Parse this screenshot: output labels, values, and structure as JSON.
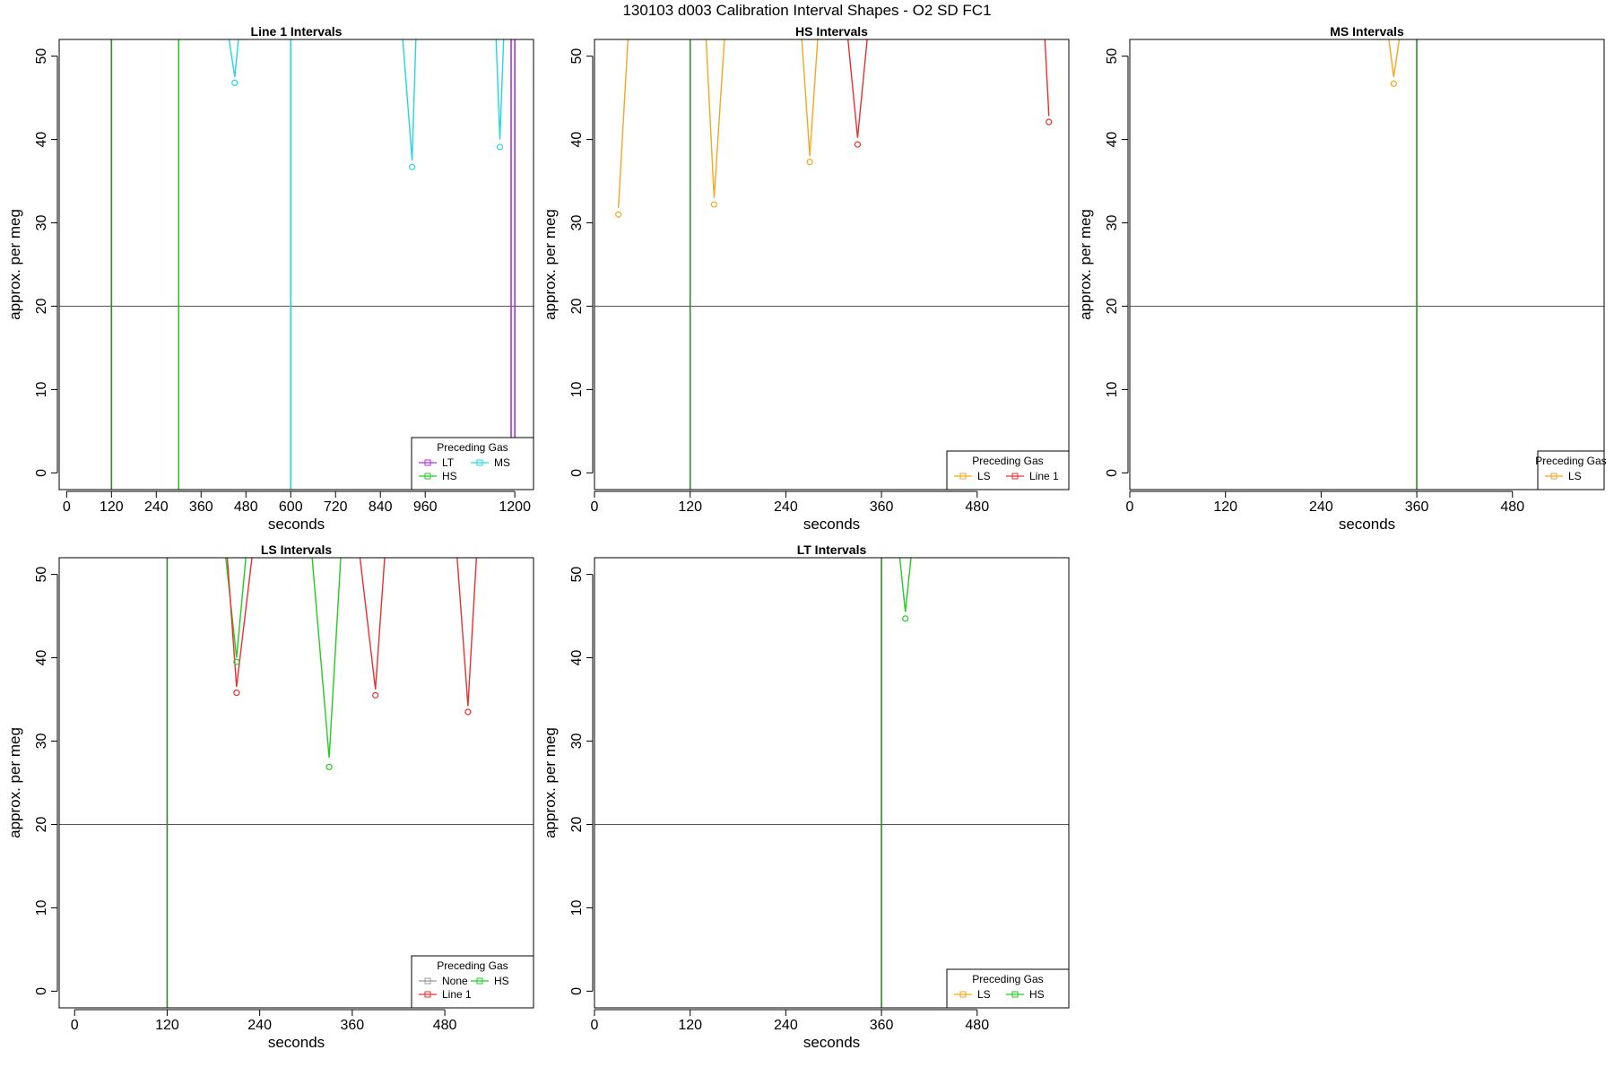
{
  "figure": {
    "title": "130103   d003   Calibration Interval Shapes - O2 SD FC1"
  },
  "chart_data": [
    {
      "type": "line",
      "title": "Line 1 Intervals",
      "xlabel": "seconds",
      "ylabel": "approx. per meg",
      "xlim": [
        -20,
        1250
      ],
      "ylim": [
        -2,
        52
      ],
      "xticks": [
        0,
        120,
        240,
        360,
        480,
        600,
        720,
        840,
        960,
        1200
      ],
      "yticks": [
        0,
        10,
        20,
        30,
        40,
        50
      ],
      "hline": 20,
      "legend": {
        "title": "Preceding Gas",
        "position": "bottom-right",
        "entries": [
          "LT",
          "MS",
          "HS"
        ],
        "columns": 2
      },
      "vlines": [
        {
          "x": 120,
          "color": "#2e8b2e"
        },
        {
          "x": 300,
          "color": "#22cc22"
        },
        {
          "x": 600,
          "color": "#22d6e6"
        },
        {
          "x": 1190,
          "color": "#b030e0"
        },
        {
          "x": 1200,
          "color": "#b030e0"
        }
      ],
      "series": [
        {
          "name": "MS",
          "color": "#22d6e6",
          "segments": [
            [
              [
                435,
                52
              ],
              [
                450,
                47.5
              ],
              [
                460,
                52
              ]
            ],
            [
              [
                900,
                52
              ],
              [
                925,
                37.5
              ],
              [
                935,
                52
              ]
            ],
            [
              [
                1150,
                52
              ],
              [
                1160,
                40
              ],
              [
                1170,
                52
              ]
            ]
          ]
        }
      ],
      "points": [
        {
          "x": 450,
          "y": 46.8,
          "color": "#22d6e6"
        },
        {
          "x": 925,
          "y": 36.7,
          "color": "#22d6e6"
        },
        {
          "x": 1160,
          "y": 39.1,
          "color": "#22d6e6"
        }
      ]
    },
    {
      "type": "line",
      "title": "HS Intervals",
      "xlabel": "seconds",
      "ylabel": "approx. per meg",
      "xlim": [
        0,
        595
      ],
      "ylim": [
        -2,
        52
      ],
      "xticks": [
        0,
        120,
        240,
        360,
        480
      ],
      "yticks": [
        0,
        10,
        20,
        30,
        40,
        50
      ],
      "hline": 20,
      "legend": {
        "title": "Preceding Gas",
        "position": "bottom-right",
        "entries": [
          "LS",
          "Line 1"
        ],
        "columns": 2
      },
      "vlines": [
        {
          "x": 120,
          "color": "#2e8b2e"
        }
      ],
      "series": [
        {
          "name": "LS",
          "color": "#f5a623",
          "segments": [
            [
              [
                30,
                31.8
              ],
              [
                42,
                52
              ]
            ],
            [
              [
                140,
                52
              ],
              [
                150,
                33
              ],
              [
                163,
                52
              ]
            ],
            [
              [
                260,
                52
              ],
              [
                270,
                38
              ],
              [
                280,
                52
              ]
            ]
          ]
        },
        {
          "name": "Line 1",
          "color": "#e83030",
          "segments": [
            [
              [
                318,
                52
              ],
              [
                330,
                40.2
              ],
              [
                342,
                52
              ]
            ],
            [
              [
                565,
                52
              ],
              [
                570,
                42.8
              ]
            ]
          ]
        }
      ],
      "points": [
        {
          "x": 30,
          "y": 31,
          "color": "#f5a623"
        },
        {
          "x": 150,
          "y": 32.2,
          "color": "#f5a623"
        },
        {
          "x": 270,
          "y": 37.3,
          "color": "#f5a623"
        },
        {
          "x": 330,
          "y": 39.4,
          "color": "#e83030"
        },
        {
          "x": 570,
          "y": 42.1,
          "color": "#e83030"
        }
      ]
    },
    {
      "type": "line",
      "title": "MS Intervals",
      "xlabel": "seconds",
      "ylabel": "approx. per meg",
      "xlim": [
        0,
        595
      ],
      "ylim": [
        -2,
        52
      ],
      "xticks": [
        0,
        120,
        240,
        360,
        480
      ],
      "yticks": [
        0,
        10,
        20,
        30,
        40,
        50
      ],
      "hline": 20,
      "legend": {
        "title": "Preceding Gas",
        "position": "bottom-right",
        "entries": [
          "LS"
        ],
        "columns": 1
      },
      "vlines": [
        {
          "x": 360,
          "color": "#2e8b2e"
        }
      ],
      "series": [
        {
          "name": "LS",
          "color": "#f5a623",
          "segments": [
            [
              [
                325,
                52
              ],
              [
                331,
                47.5
              ],
              [
                338,
                52
              ]
            ]
          ]
        }
      ],
      "points": [
        {
          "x": 331,
          "y": 46.7,
          "color": "#f5a623"
        }
      ]
    },
    {
      "type": "line",
      "title": "LS Intervals",
      "xlabel": "seconds",
      "ylabel": "approx. per meg",
      "xlim": [
        -20,
        595
      ],
      "ylim": [
        -2,
        52
      ],
      "xticks": [
        0,
        120,
        240,
        360,
        480
      ],
      "yticks": [
        0,
        10,
        20,
        30,
        40,
        50
      ],
      "hline": 20,
      "legend": {
        "title": "Preceding Gas",
        "position": "bottom-right",
        "entries": [
          "None",
          "HS",
          "Line 1"
        ],
        "columns": 2
      },
      "vlines": [
        {
          "x": 120,
          "color": "#2e8b2e"
        }
      ],
      "series": [
        {
          "name": "HS",
          "color": "#22cc22",
          "segments": [
            [
              [
                196,
                52
              ],
              [
                210,
                40
              ],
              [
                222,
                52
              ]
            ],
            [
              [
                308,
                52
              ],
              [
                330,
                28
              ],
              [
                345,
                52
              ]
            ]
          ]
        },
        {
          "name": "Line 1",
          "color": "#e83030",
          "segments": [
            [
              [
                198,
                52
              ],
              [
                210,
                36.5
              ],
              [
                230,
                52
              ]
            ],
            [
              [
                370,
                52
              ],
              [
                390,
                36.2
              ],
              [
                402,
                52
              ]
            ],
            [
              [
                496,
                52
              ],
              [
                510,
                34.2
              ],
              [
                521,
                52
              ]
            ]
          ]
        }
      ],
      "points": [
        {
          "x": 210,
          "y": 39.5,
          "color": "#22cc22"
        },
        {
          "x": 330,
          "y": 26.9,
          "color": "#22cc22"
        },
        {
          "x": 210,
          "y": 35.8,
          "color": "#e83030"
        },
        {
          "x": 390,
          "y": 35.5,
          "color": "#e83030"
        },
        {
          "x": 510,
          "y": 33.5,
          "color": "#e83030"
        }
      ]
    },
    {
      "type": "line",
      "title": "LT Intervals",
      "xlabel": "seconds",
      "ylabel": "approx. per meg",
      "xlim": [
        0,
        595
      ],
      "ylim": [
        -2,
        52
      ],
      "xticks": [
        0,
        120,
        240,
        360,
        480
      ],
      "yticks": [
        0,
        10,
        20,
        30,
        40,
        50
      ],
      "hline": 20,
      "legend": {
        "title": "Preceding Gas",
        "position": "bottom-right",
        "entries": [
          "LS",
          "HS"
        ],
        "columns": 2
      },
      "vlines": [
        {
          "x": 360,
          "color": "#2e8b2e"
        }
      ],
      "series": [
        {
          "name": "HS",
          "color": "#22cc22",
          "segments": [
            [
              [
                383,
                52
              ],
              [
                390,
                45.5
              ],
              [
                397,
                52
              ]
            ]
          ]
        }
      ],
      "points": [
        {
          "x": 390,
          "y": 44.7,
          "color": "#22cc22"
        }
      ]
    }
  ],
  "legend_colors": {
    "LT": "#b030e0",
    "MS": "#22d6e6",
    "HS": "#22cc22",
    "LS": "#f5a623",
    "Line 1": "#e83030",
    "None": "#999999"
  }
}
